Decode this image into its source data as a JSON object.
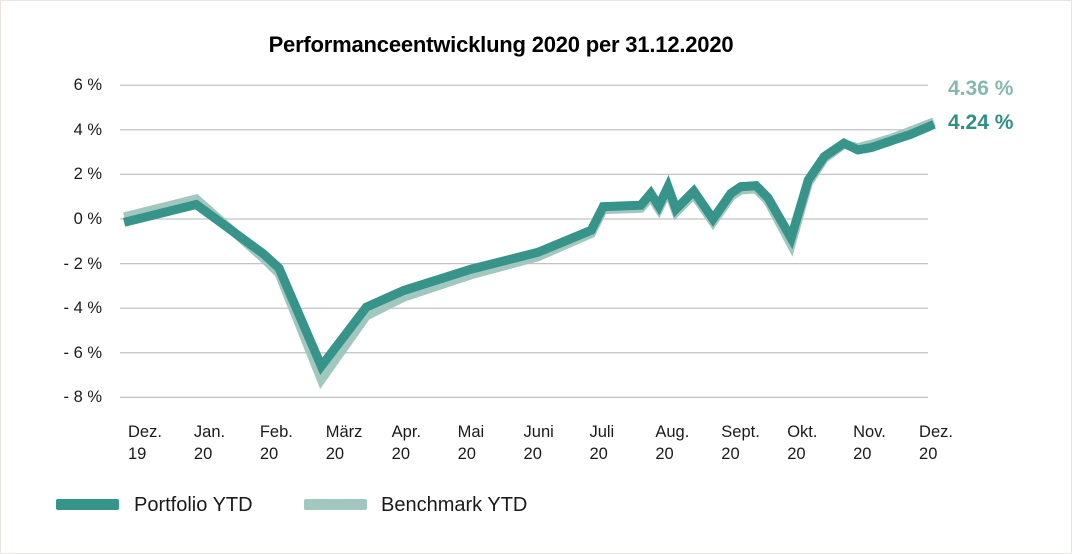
{
  "title": "Performanceentwicklung 2020 per 31.12.2020",
  "colors": {
    "portfolio": "#37948a",
    "portfolio_text": "#2f9184",
    "benchmark": "#a2c7bf",
    "benchmark_text": "#85b8ae",
    "grid": "#c3c3c3",
    "text": "#1a1a1a"
  },
  "end_labels": {
    "benchmark": "4.36 %",
    "portfolio": "4.24 %"
  },
  "legend": [
    {
      "key": "portfolio",
      "label": "Portfolio YTD"
    },
    {
      "key": "benchmark",
      "label": "Benchmark YTD"
    }
  ],
  "y_axis": {
    "ticks": [
      {
        "label": "6 %",
        "value": 6
      },
      {
        "label": "4 %",
        "value": 4
      },
      {
        "label": "2 %",
        "value": 2
      },
      {
        "label": "0 %",
        "value": 0
      },
      {
        "label": "- 2 %",
        "value": -2
      },
      {
        "label": "- 4 %",
        "value": -4
      },
      {
        "label": "- 6 %",
        "value": -6
      },
      {
        "label": "- 8 %",
        "value": -8
      }
    ]
  },
  "x_axis": {
    "ticks": [
      {
        "l1": "Dez.",
        "l2": "19"
      },
      {
        "l1": "Jan.",
        "l2": "20"
      },
      {
        "l1": "Feb.",
        "l2": "20"
      },
      {
        "l1": "März",
        "l2": "20"
      },
      {
        "l1": "Apr.",
        "l2": "20"
      },
      {
        "l1": "Mai",
        "l2": "20"
      },
      {
        "l1": "Juni",
        "l2": "20"
      },
      {
        "l1": "Juli",
        "l2": "20"
      },
      {
        "l1": "Aug.",
        "l2": "20"
      },
      {
        "l1": "Sept.",
        "l2": "20"
      },
      {
        "l1": "Okt.",
        "l2": "20"
      },
      {
        "l1": "Nov.",
        "l2": "20"
      },
      {
        "l1": "Dez.",
        "l2": "20"
      }
    ]
  },
  "chart_data": {
    "type": "line",
    "title": "Performanceentwicklung 2020 per 31.12.2020",
    "unit": "%",
    "ylim": [
      -8,
      6
    ],
    "grid": true,
    "legend_position": "bottom-left",
    "categories": [
      "Dez. 19",
      "Jan. 20",
      "Feb. 20",
      "März 20",
      "Apr. 20",
      "Mai 20",
      "Juni 20",
      "Juli 20",
      "Aug. 20",
      "Sept. 20",
      "Okt. 20",
      "Nov. 20",
      "Dez. 20"
    ],
    "series": [
      {
        "key": "portfolio",
        "name": "Portfolio YTD",
        "final_value_pct": 4.24,
        "points": [
          [
            -0.24,
            -0.15
          ],
          [
            0.85,
            0.65
          ],
          [
            1.86,
            -1.55
          ],
          [
            2.1,
            -2.2
          ],
          [
            2.74,
            -6.6
          ],
          [
            3.42,
            -3.95
          ],
          [
            3.99,
            -3.2
          ],
          [
            5.0,
            -2.25
          ],
          [
            6.01,
            -1.5
          ],
          [
            6.82,
            -0.5
          ],
          [
            7.0,
            0.55
          ],
          [
            7.57,
            0.62
          ],
          [
            7.72,
            1.15
          ],
          [
            7.84,
            0.58
          ],
          [
            7.98,
            1.45
          ],
          [
            8.1,
            0.45
          ],
          [
            8.37,
            1.25
          ],
          [
            8.66,
            0.0
          ],
          [
            8.93,
            1.15
          ],
          [
            9.08,
            1.45
          ],
          [
            9.31,
            1.5
          ],
          [
            9.49,
            0.95
          ],
          [
            9.84,
            -0.85
          ],
          [
            10.1,
            1.75
          ],
          [
            10.34,
            2.8
          ],
          [
            10.64,
            3.4
          ],
          [
            10.85,
            3.1
          ],
          [
            11.05,
            3.2
          ],
          [
            11.35,
            3.5
          ],
          [
            11.65,
            3.8
          ],
          [
            12,
            4.24
          ]
        ]
      },
      {
        "key": "benchmark",
        "name": "Benchmark YTD",
        "final_value_pct": 4.36,
        "points": [
          [
            -0.24,
            0.1
          ],
          [
            0.85,
            0.9
          ],
          [
            1.86,
            -1.75
          ],
          [
            2.1,
            -2.45
          ],
          [
            2.74,
            -7.2
          ],
          [
            3.42,
            -4.35
          ],
          [
            3.99,
            -3.5
          ],
          [
            5.0,
            -2.5
          ],
          [
            6.01,
            -1.7
          ],
          [
            6.82,
            -0.65
          ],
          [
            7.0,
            0.42
          ],
          [
            7.57,
            0.48
          ],
          [
            7.72,
            1.0
          ],
          [
            7.84,
            0.44
          ],
          [
            7.98,
            1.3
          ],
          [
            8.1,
            0.3
          ],
          [
            8.37,
            1.1
          ],
          [
            8.66,
            -0.15
          ],
          [
            8.93,
            1.0
          ],
          [
            9.08,
            1.3
          ],
          [
            9.31,
            1.35
          ],
          [
            9.49,
            0.8
          ],
          [
            9.84,
            -1.15
          ],
          [
            10.1,
            1.6
          ],
          [
            10.34,
            2.7
          ],
          [
            10.64,
            3.35
          ],
          [
            10.85,
            3.2
          ],
          [
            11.05,
            3.35
          ],
          [
            11.35,
            3.62
          ],
          [
            11.65,
            3.95
          ],
          [
            12,
            4.36
          ]
        ]
      }
    ]
  }
}
